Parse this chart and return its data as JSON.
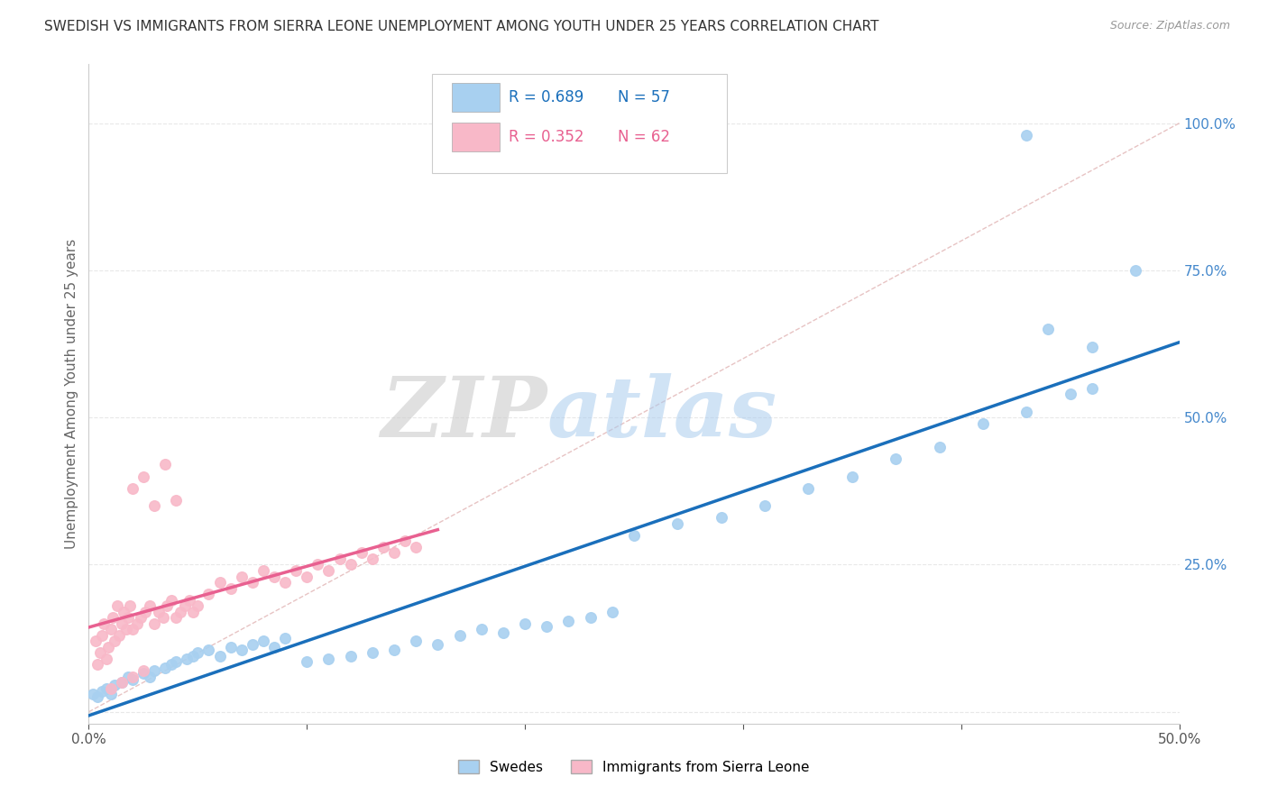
{
  "title": "SWEDISH VS IMMIGRANTS FROM SIERRA LEONE UNEMPLOYMENT AMONG YOUTH UNDER 25 YEARS CORRELATION CHART",
  "source": "Source: ZipAtlas.com",
  "ylabel": "Unemployment Among Youth under 25 years",
  "xlim": [
    0.0,
    0.5
  ],
  "ylim": [
    -0.02,
    1.1
  ],
  "blue_color": "#a8d0f0",
  "pink_color": "#f8b8c8",
  "blue_line_color": "#1a6fbb",
  "pink_line_color": "#e86090",
  "dashed_line_color": "#ccaaaa",
  "background_color": "#ffffff",
  "grid_color": "#e8e8e8",
  "ytick_color": "#4488cc",
  "xtick_color": "#555555",
  "title_color": "#333333",
  "source_color": "#999999",
  "ylabel_color": "#666666"
}
